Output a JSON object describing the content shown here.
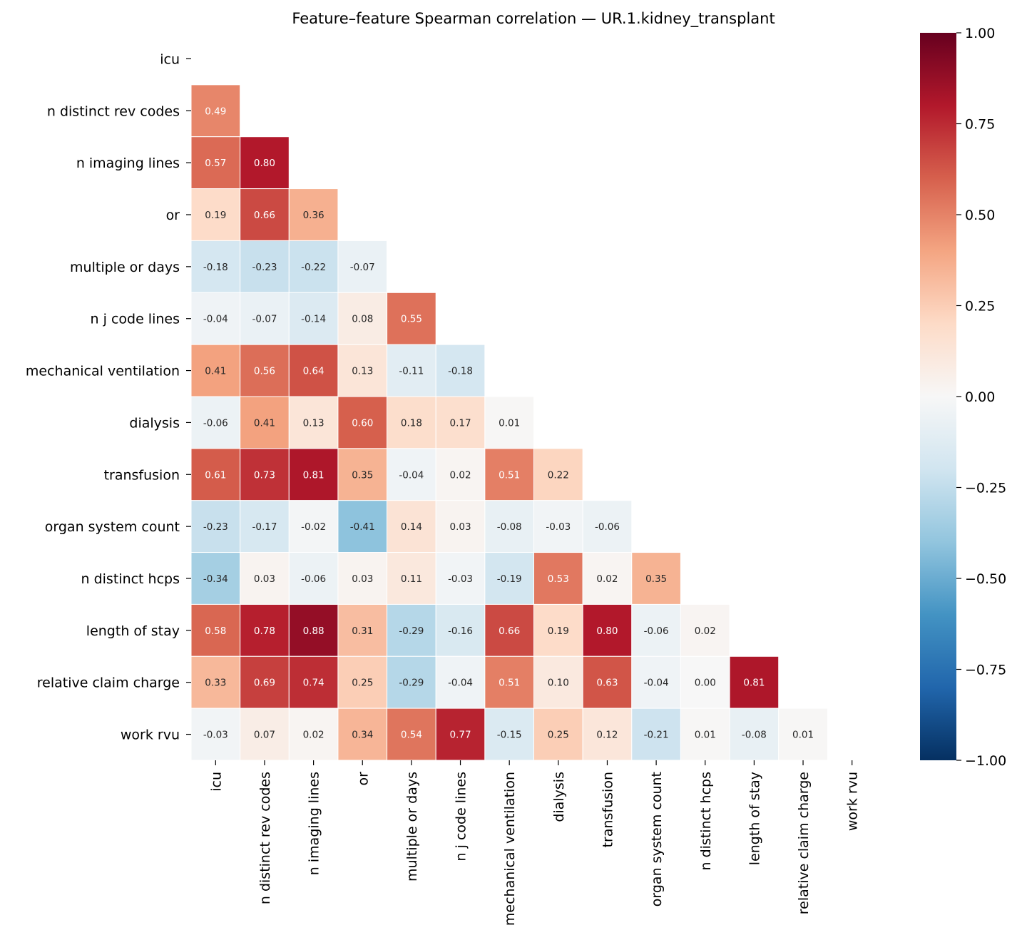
{
  "chart_data": {
    "type": "heatmap",
    "title": "Feature–feature Spearman correlation — UR.1.kidney_transplant",
    "labels": [
      "icu",
      "n distinct rev codes",
      "n imaging lines",
      "or",
      "multiple or days",
      "n j code lines",
      "mechanical ventilation",
      "dialysis",
      "transfusion",
      "organ system count",
      "n distinct hcps",
      "length of stay",
      "relative claim charge",
      "work rvu"
    ],
    "mask": "upper triangle incl. diagonal",
    "values": [
      [],
      [
        0.49
      ],
      [
        0.57,
        0.8
      ],
      [
        0.19,
        0.66,
        0.36
      ],
      [
        -0.18,
        -0.23,
        -0.22,
        -0.07
      ],
      [
        -0.04,
        -0.07,
        -0.14,
        0.08,
        0.55
      ],
      [
        0.41,
        0.56,
        0.64,
        0.13,
        -0.11,
        -0.18
      ],
      [
        -0.06,
        0.41,
        0.13,
        0.6,
        0.18,
        0.17,
        0.01
      ],
      [
        0.61,
        0.73,
        0.81,
        0.35,
        -0.04,
        0.02,
        0.51,
        0.22
      ],
      [
        -0.23,
        -0.17,
        -0.02,
        -0.41,
        0.14,
        0.03,
        -0.08,
        -0.03,
        -0.06
      ],
      [
        -0.34,
        0.03,
        -0.06,
        0.03,
        0.11,
        -0.03,
        -0.19,
        0.53,
        0.02,
        0.35
      ],
      [
        0.58,
        0.78,
        0.88,
        0.31,
        -0.29,
        -0.16,
        0.66,
        0.19,
        0.8,
        -0.06,
        0.02
      ],
      [
        0.33,
        0.69,
        0.74,
        0.25,
        -0.29,
        -0.04,
        0.51,
        0.1,
        0.63,
        -0.04,
        -0.0,
        0.81
      ],
      [
        -0.03,
        0.07,
        0.02,
        0.34,
        0.54,
        0.77,
        -0.15,
        0.25,
        0.12,
        -0.21,
        0.01,
        -0.08,
        0.01
      ]
    ],
    "colormap": "RdBu_r",
    "vmin": -1.0,
    "vmax": 1.0,
    "colorbar_ticks": [
      "1.00",
      "0.75",
      "0.50",
      "0.25",
      "0.00",
      "−0.25",
      "−0.50",
      "−0.75",
      "−1.00"
    ],
    "colorbar_tick_values": [
      1,
      0.75,
      0.5,
      0.25,
      0,
      -0.25,
      -0.5,
      -0.75,
      -1
    ]
  }
}
